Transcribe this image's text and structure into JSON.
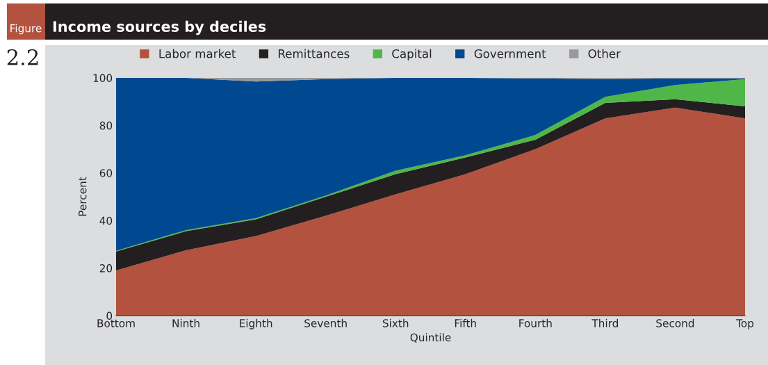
{
  "chart_data": {
    "type": "area",
    "stacked": true,
    "title": "Income sources by deciles",
    "annotations": [
      "Figure",
      "2.2"
    ],
    "xlabel": "Quintile",
    "ylabel": "Percent",
    "categories": [
      "Bottom",
      "Ninth",
      "Eighth",
      "Seventh",
      "Sixth",
      "Fifth",
      "Fourth",
      "Third",
      "Second",
      "Top"
    ],
    "series": [
      {
        "name": "Labor market",
        "color": "#b3523f",
        "values": [
          19,
          27.5,
          33.5,
          42,
          51,
          59.5,
          70,
          83,
          87.5,
          83
        ]
      },
      {
        "name": "Remittances",
        "color": "#231f20",
        "values": [
          8,
          8,
          7,
          8,
          8.5,
          7,
          4,
          6.5,
          3.5,
          5
        ]
      },
      {
        "name": "Capital",
        "color": "#4fb748",
        "values": [
          0.3,
          0.5,
          0.5,
          0.5,
          1.5,
          1,
          2,
          2.5,
          6,
          11.5
        ]
      },
      {
        "name": "Government",
        "color": "#004990",
        "values": [
          72.7,
          64,
          57.5,
          49,
          39,
          32.5,
          23.8,
          7.5,
          2.8,
          0.2
        ]
      },
      {
        "name": "Other",
        "color": "#999999",
        "values": [
          0,
          0,
          1.5,
          0.5,
          0,
          0,
          0.2,
          0.5,
          0.2,
          0.3
        ]
      }
    ],
    "ylim": [
      0,
      100
    ],
    "yticks": [
      0,
      20,
      40,
      60,
      80,
      100
    ],
    "grid": false,
    "legend": "top"
  }
}
